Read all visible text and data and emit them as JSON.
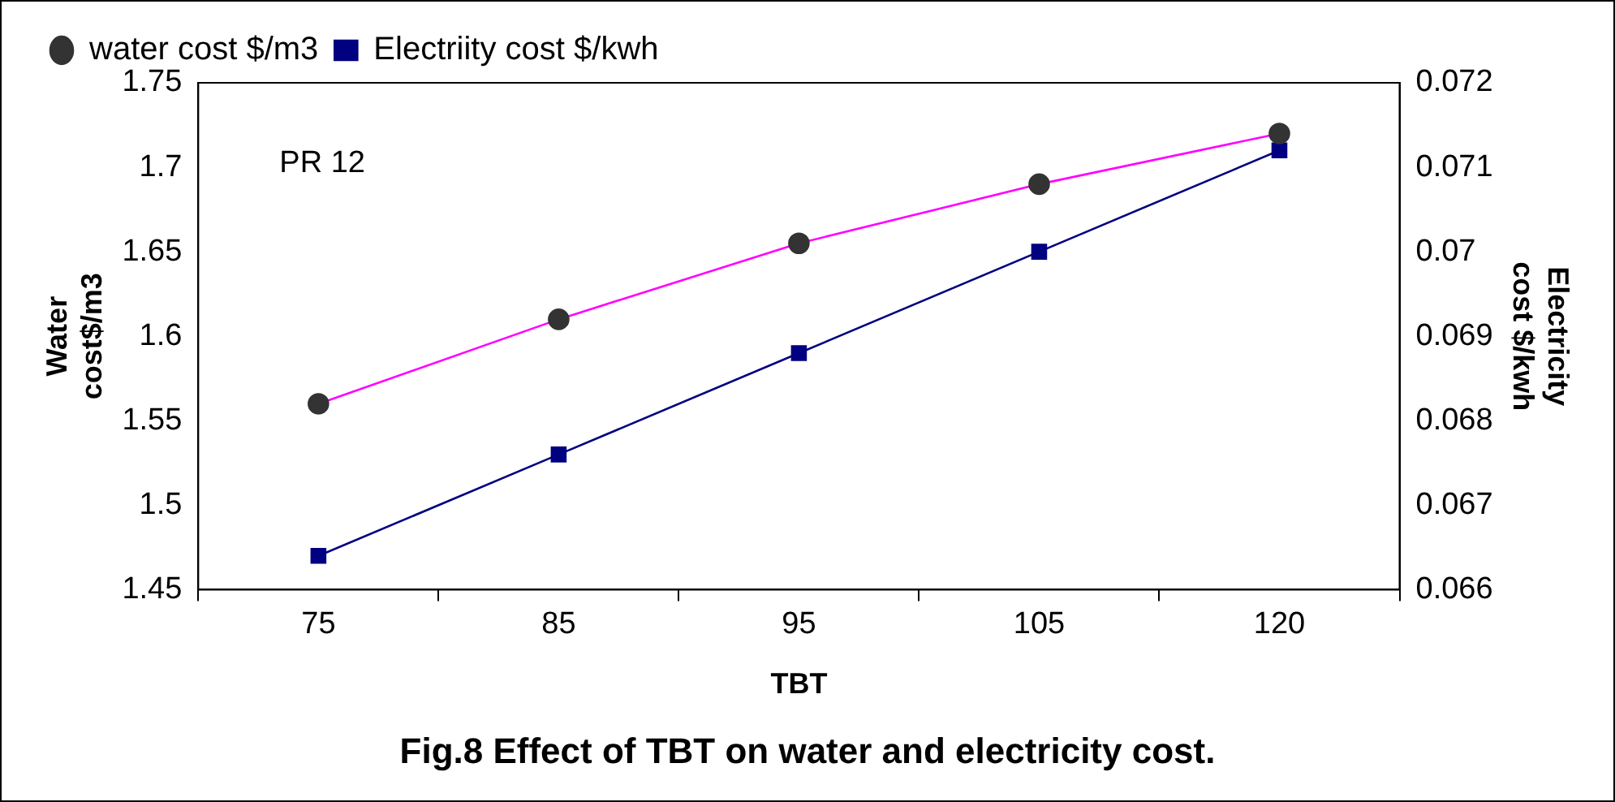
{
  "chart_data": {
    "type": "line",
    "title": "Fig.8 Effect of TBT on water and electricity cost.",
    "xlabel": "TBT",
    "ylabel": "Water cost$/m3",
    "y2label": "Electricity cost $/kwh",
    "categories": [
      "75",
      "85",
      "95",
      "105",
      "120"
    ],
    "series": [
      {
        "name": "water cost $/m3",
        "color": "#ff00ff",
        "colors": [
          "#333333",
          "#333333",
          "#333333",
          "#333333",
          "#333333"
        ],
        "marker": "circle",
        "values": [
          1.56,
          1.61,
          1.655,
          1.69,
          1.72
        ]
      },
      {
        "name": "Electriity cost $/kwh",
        "color": "#000080",
        "marker": "square",
        "axis": "y2",
        "values": [
          0.0664,
          0.0676,
          0.0688,
          0.07,
          0.0712
        ]
      }
    ],
    "ylim": [
      1.45,
      1.75
    ],
    "yticks": [
      1.45,
      1.5,
      1.55,
      1.6,
      1.65,
      1.7,
      1.75
    ],
    "y2lim": [
      0.066,
      0.072
    ],
    "y2ticks": [
      0.066,
      0.067,
      0.068,
      0.069,
      0.07,
      0.071,
      0.072
    ],
    "annotations": [
      "PR 12"
    ],
    "grid": false,
    "legend": "top",
    "line_style": "solid"
  }
}
